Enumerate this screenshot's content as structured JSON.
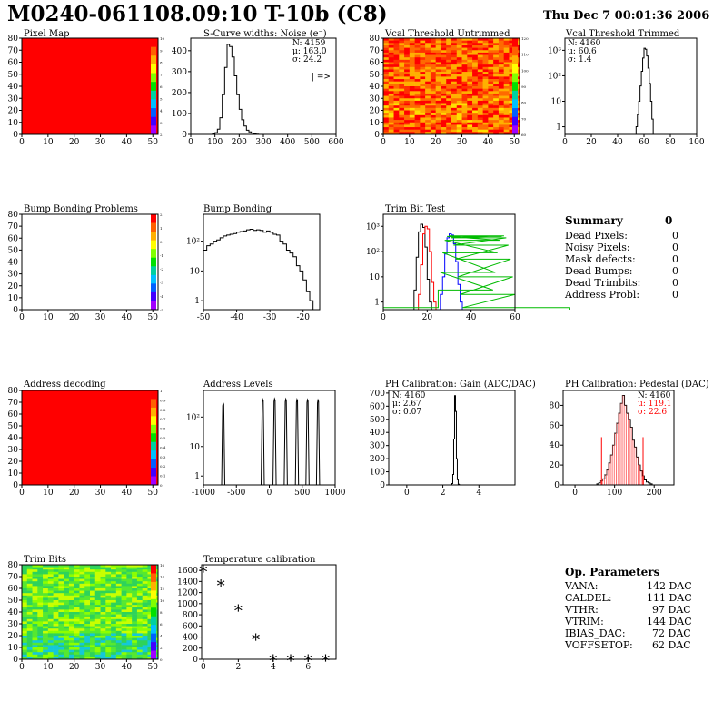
{
  "header": {
    "title": "M0240-061108.09:10 T-10b (C8)",
    "timestamp": "Thu Dec  7 00:01:36 2006"
  },
  "chart_data": [
    {
      "id": "pixel_map",
      "type": "heatmap",
      "title": "Pixel Map",
      "x_ticks": [
        "0",
        "10",
        "20",
        "30",
        "40",
        "50"
      ],
      "y_ticks": [
        "0",
        "10",
        "20",
        "30",
        "40",
        "50",
        "60",
        "70",
        "80"
      ],
      "xlim": [
        0,
        52
      ],
      "ylim": [
        0,
        80
      ],
      "fill": "uniform",
      "fill_color": "#ff0000",
      "palette_ticks": [
        "2",
        "3",
        "4",
        "5",
        "6",
        "7",
        "8",
        "9",
        "10"
      ]
    },
    {
      "id": "scurve",
      "type": "histogram",
      "title": "S-Curve widths: Noise (e⁻)",
      "x_ticks": [
        "0",
        "100",
        "200",
        "300",
        "400",
        "500",
        "600"
      ],
      "y_ticks": [
        "0",
        "100",
        "200",
        "300",
        "400"
      ],
      "xlim": [
        0,
        600
      ],
      "ylim": [
        0,
        460
      ],
      "stats": [
        "N: 4159",
        "μ: 163.0",
        "σ: 24.2"
      ],
      "extra_label": "| =>",
      "bins_x": [
        80,
        90,
        100,
        110,
        120,
        130,
        140,
        150,
        160,
        170,
        180,
        190,
        200,
        210,
        220,
        230,
        240,
        250,
        260,
        270,
        280,
        290
      ],
      "values": [
        0,
        3,
        8,
        25,
        80,
        190,
        320,
        430,
        420,
        370,
        280,
        190,
        120,
        70,
        40,
        20,
        12,
        6,
        3,
        1,
        0,
        0
      ]
    },
    {
      "id": "vcal_untrimmed",
      "type": "heatmap",
      "title": "Vcal Threshold Untrimmed",
      "x_ticks": [
        "0",
        "10",
        "20",
        "30",
        "40",
        "50"
      ],
      "y_ticks": [
        "0",
        "10",
        "20",
        "30",
        "40",
        "50",
        "60",
        "70",
        "80"
      ],
      "xlim": [
        0,
        52
      ],
      "ylim": [
        0,
        80
      ],
      "fill": "noise",
      "palette": "warm",
      "palette_ticks": [
        "60",
        "70",
        "80",
        "90",
        "100",
        "110",
        "120"
      ]
    },
    {
      "id": "vcal_trimmed",
      "type": "histogram",
      "title": "Vcal Threshold Trimmed",
      "log_y": true,
      "x_ticks": [
        "0",
        "20",
        "40",
        "60",
        "80",
        "100"
      ],
      "y_ticks": [
        "1",
        "10",
        "10²",
        "10³"
      ],
      "xlim": [
        0,
        100
      ],
      "ylim_log": [
        0.5,
        3000
      ],
      "stats": [
        "N: 4160",
        "μ: 60.6",
        "σ: 1.4"
      ],
      "bins_x": [
        54,
        55,
        56,
        57,
        58,
        59,
        60,
        61,
        62,
        63,
        64,
        65,
        66
      ],
      "values": [
        1,
        3,
        10,
        40,
        150,
        500,
        1200,
        1100,
        600,
        200,
        50,
        10,
        2
      ]
    },
    {
      "id": "bump_bonding_problems",
      "type": "heatmap",
      "title": "Bump Bonding Problems",
      "x_ticks": [
        "0",
        "10",
        "20",
        "30",
        "40",
        "50"
      ],
      "y_ticks": [
        "0",
        "10",
        "20",
        "30",
        "40",
        "50",
        "60",
        "70",
        "80"
      ],
      "xlim": [
        0,
        52
      ],
      "ylim": [
        0,
        80
      ],
      "fill": "empty",
      "palette_ticks": [
        "-5",
        "-4",
        "-3",
        "-2",
        "-1",
        "0",
        "1",
        "2"
      ]
    },
    {
      "id": "bump_bonding",
      "type": "histogram",
      "title": "Bump Bonding",
      "log_y": true,
      "x_ticks": [
        "-50",
        "-40",
        "-30",
        "-20"
      ],
      "y_ticks": [
        "1",
        "10",
        "10²"
      ],
      "xlim": [
        -50,
        -15
      ],
      "ylim_log": [
        0.5,
        800
      ],
      "bins_x": [
        -50,
        -49,
        -48,
        -47,
        -46,
        -45,
        -44,
        -43,
        -42,
        -41,
        -40,
        -39,
        -38,
        -37,
        -36,
        -35,
        -34,
        -33,
        -32,
        -31,
        -30,
        -29,
        -28,
        -27,
        -26,
        -25,
        -24,
        -23,
        -22,
        -21,
        -20,
        -19,
        -18
      ],
      "values": [
        50,
        70,
        80,
        100,
        110,
        130,
        150,
        160,
        170,
        180,
        200,
        210,
        220,
        240,
        250,
        230,
        240,
        230,
        200,
        220,
        200,
        170,
        160,
        100,
        80,
        50,
        40,
        30,
        15,
        10,
        5,
        2,
        1
      ]
    },
    {
      "id": "trim_bit_test",
      "type": "histogram",
      "title": "Trim Bit Test",
      "log_y": true,
      "x_ticks": [
        "0",
        "20",
        "40",
        "60"
      ],
      "y_ticks": [
        "1",
        "10",
        "10²",
        "10³"
      ],
      "xlim": [
        0,
        60
      ],
      "ylim_log": [
        0.5,
        3000
      ],
      "series": [
        {
          "name": "",
          "color": "#000000",
          "bins_x": [
            14,
            15,
            16,
            17,
            18,
            19,
            20,
            21
          ],
          "values": [
            3,
            60,
            600,
            1200,
            900,
            150,
            8,
            1
          ]
        },
        {
          "name": "",
          "color": "#ff0000",
          "bins_x": [
            16,
            17,
            18,
            19,
            20,
            21,
            22,
            23
          ],
          "values": [
            2,
            30,
            500,
            1000,
            800,
            100,
            6,
            1
          ]
        },
        {
          "name": "",
          "color": "#0000ff",
          "bins_x": [
            26,
            27,
            28,
            29,
            30,
            31,
            32,
            33,
            34,
            35
          ],
          "values": [
            2,
            10,
            80,
            350,
            500,
            450,
            200,
            40,
            5,
            1
          ]
        },
        {
          "name": "",
          "color": "#00bb00",
          "bins_x": [
            0,
            25,
            26,
            27,
            28,
            29,
            30,
            31,
            32,
            33,
            34,
            35,
            36,
            60
          ],
          "values": [
            0.6,
            3,
            15,
            90,
            280,
            400,
            420,
            350,
            180,
            50,
            10,
            2,
            0.6,
            0.6
          ]
        }
      ]
    },
    {
      "id": "address_decoding",
      "type": "heatmap",
      "title": "Address decoding",
      "x_ticks": [
        "0",
        "10",
        "20",
        "30",
        "40",
        "50"
      ],
      "y_ticks": [
        "0",
        "10",
        "20",
        "30",
        "40",
        "50",
        "60",
        "70",
        "80"
      ],
      "xlim": [
        0,
        52
      ],
      "ylim": [
        0,
        80
      ],
      "fill": "uniform",
      "fill_color": "#ff0000",
      "palette_ticks": [
        "0",
        "0.1",
        "0.2",
        "0.3",
        "0.4",
        "0.5",
        "0.6",
        "0.7",
        "0.8",
        "0.9",
        "1"
      ]
    },
    {
      "id": "address_levels",
      "type": "histogram",
      "title": "Address Levels",
      "log_y": true,
      "x_ticks": [
        "-1000",
        "-500",
        "0",
        "500",
        "1000"
      ],
      "y_ticks": [
        "1",
        "10",
        "10²"
      ],
      "xlim": [
        -1000,
        1000
      ],
      "ylim_log": [
        0.5,
        800
      ],
      "peaks": [
        -700,
        -100,
        80,
        250,
        420,
        580,
        740
      ],
      "peak_heights": [
        300,
        400,
        420,
        410,
        400,
        390,
        380
      ]
    },
    {
      "id": "ph_gain",
      "type": "histogram",
      "title": "PH Calibration: Gain (ADC/DAC)",
      "x_ticks": [
        "0",
        "2",
        "4"
      ],
      "y_ticks": [
        "0",
        "100",
        "200",
        "300",
        "400",
        "500",
        "600",
        "700"
      ],
      "xlim": [
        -1,
        6
      ],
      "ylim": [
        0,
        720
      ],
      "stats": [
        "N: 4160",
        "μ: 2.67",
        "σ: 0.07"
      ],
      "bins_x": [
        2.45,
        2.5,
        2.55,
        2.6,
        2.65,
        2.7,
        2.75,
        2.8,
        2.85,
        2.9
      ],
      "values": [
        2,
        10,
        80,
        350,
        680,
        560,
        200,
        40,
        5,
        1
      ]
    },
    {
      "id": "ph_pedestal",
      "type": "histogram",
      "title": "PH Calibration: Pedestal (DAC)",
      "x_ticks": [
        "0",
        "100",
        "200"
      ],
      "y_ticks": [
        "0",
        "20",
        "40",
        "60",
        "80"
      ],
      "xlim": [
        -30,
        250
      ],
      "ylim": [
        0,
        95
      ],
      "stats": [
        "N: 4160",
        "μ: 119.1",
        "σ: 22.6"
      ],
      "stats_colors": [
        "#000000",
        "#ff0000",
        "#ff0000"
      ],
      "marker_lines": [
        67,
        172
      ],
      "marker_height": 48,
      "bins_x": [
        55,
        60,
        65,
        70,
        75,
        80,
        85,
        90,
        95,
        100,
        105,
        110,
        115,
        120,
        125,
        130,
        135,
        140,
        145,
        150,
        155,
        160,
        165,
        170,
        175,
        180,
        185,
        190,
        195
      ],
      "values": [
        1,
        2,
        4,
        6,
        10,
        15,
        22,
        30,
        40,
        52,
        62,
        72,
        82,
        90,
        80,
        72,
        66,
        58,
        45,
        38,
        28,
        20,
        14,
        9,
        5,
        3,
        2,
        1,
        0
      ]
    },
    {
      "id": "trim_bits",
      "type": "heatmap",
      "title": "Trim Bits",
      "x_ticks": [
        "0",
        "10",
        "20",
        "30",
        "40",
        "50"
      ],
      "y_ticks": [
        "0",
        "10",
        "20",
        "30",
        "40",
        "50",
        "60",
        "70",
        "80"
      ],
      "xlim": [
        0,
        52
      ],
      "ylim": [
        0,
        80
      ],
      "fill": "noise",
      "palette": "cool",
      "palette_ticks": [
        "0",
        "2",
        "4",
        "6",
        "8",
        "10",
        "12",
        "14",
        "16"
      ]
    },
    {
      "id": "temperature_calibration",
      "type": "scatter",
      "title": "Temperature calibration",
      "x_ticks": [
        "0",
        "2",
        "4",
        "6"
      ],
      "y_ticks": [
        "0",
        "200",
        "400",
        "600",
        "800",
        "1000",
        "1200",
        "1400",
        "1600"
      ],
      "xlim": [
        -0.1,
        7.6
      ],
      "ylim": [
        0,
        1700
      ],
      "x": [
        0,
        1,
        2,
        3,
        4,
        5,
        6,
        7
      ],
      "y": [
        1600,
        1350,
        900,
        380,
        0,
        0,
        0,
        0
      ]
    }
  ],
  "summary": {
    "title": "Summary",
    "value": "0",
    "rows": [
      {
        "label": "Dead Pixels:",
        "value": "0"
      },
      {
        "label": "Noisy Pixels:",
        "value": "0"
      },
      {
        "label": "Mask defects:",
        "value": "0"
      },
      {
        "label": "Dead Bumps:",
        "value": "0"
      },
      {
        "label": "Dead Trimbits:",
        "value": "0"
      },
      {
        "label": "Address Probl:",
        "value": "0"
      }
    ]
  },
  "op_params": {
    "title": "Op. Parameters",
    "rows": [
      {
        "label": "VANA:",
        "value": "142 DAC"
      },
      {
        "label": "CALDEL:",
        "value": "111 DAC"
      },
      {
        "label": "VTHR:",
        "value": "97 DAC"
      },
      {
        "label": "VTRIM:",
        "value": "144 DAC"
      },
      {
        "label": "IBIAS_DAC:",
        "value": "72 DAC"
      },
      {
        "label": "VOFFSETOP:",
        "value": "62 DAC"
      }
    ]
  }
}
